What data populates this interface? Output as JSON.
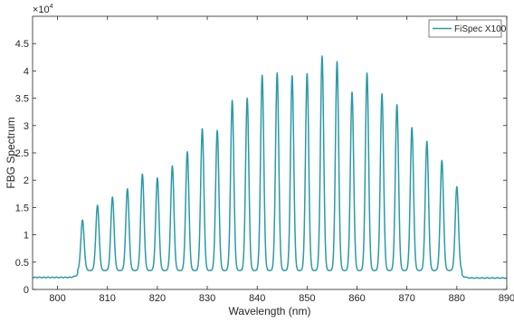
{
  "chart_data": {
    "type": "line",
    "xlabel": "Wavelength (nm)",
    "ylabel": "FBG Spectrum",
    "y_multiplier_label": "×10",
    "y_multiplier_exponent": "4",
    "xlim": [
      795,
      890
    ],
    "ylim": [
      0,
      5
    ],
    "x_ticks": [
      800,
      810,
      820,
      830,
      840,
      850,
      860,
      870,
      880,
      890
    ],
    "x_tick_labels": [
      "800",
      "810",
      "820",
      "830",
      "840",
      "850",
      "860",
      "870",
      "880",
      "890"
    ],
    "y_ticks": [
      0,
      0.5,
      1,
      1.5,
      2,
      2.5,
      3,
      3.5,
      4,
      4.5
    ],
    "y_tick_labels": [
      "0",
      "0.5",
      "1",
      "1.5",
      "2",
      "2.5",
      "3",
      "3.5",
      "4",
      "4.5"
    ],
    "grid": false,
    "legend_position": "top-right",
    "series": [
      {
        "name": "FiSpec X100",
        "color": "#2a9aa8",
        "baseline_outside": 0.22,
        "baseline_inside": 0.3,
        "band": [
          804,
          881
        ],
        "peaks": {
          "x": [
            805,
            808,
            811,
            814,
            817,
            820,
            823,
            826,
            829,
            832,
            835,
            838,
            841,
            844,
            847,
            850,
            853,
            856,
            859,
            862,
            865,
            868,
            871,
            874,
            877,
            880
          ],
          "y": [
            1.18,
            1.45,
            1.6,
            1.75,
            2.02,
            1.95,
            2.17,
            2.43,
            2.85,
            2.82,
            3.37,
            3.41,
            3.83,
            3.87,
            3.82,
            3.86,
            4.18,
            4.08,
            3.52,
            3.87,
            3.49,
            3.29,
            2.87,
            2.62,
            2.27,
            1.79
          ]
        }
      }
    ]
  }
}
